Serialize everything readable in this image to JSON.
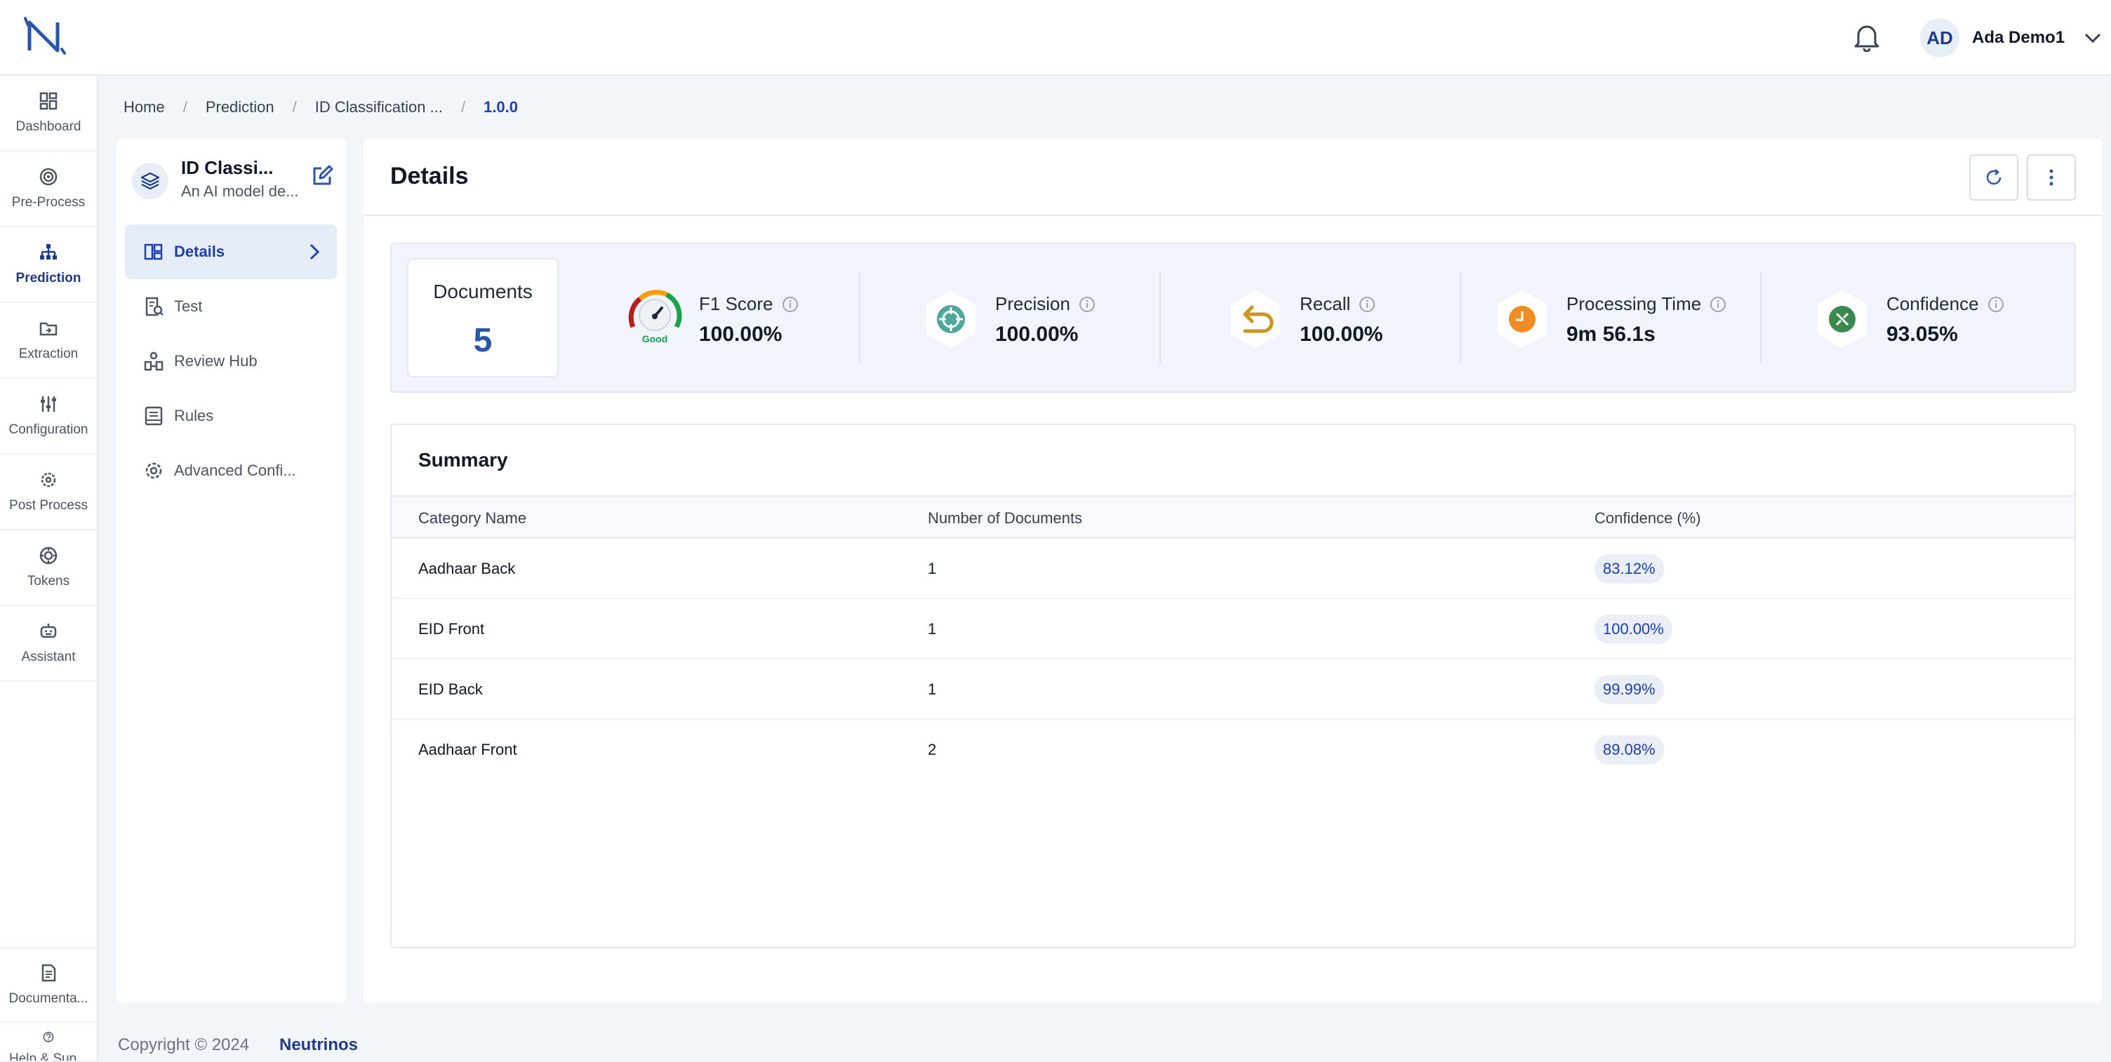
{
  "header": {
    "user_initials": "AD",
    "user_name": "Ada Demo1"
  },
  "rail": {
    "items": [
      {
        "label": "Dashboard"
      },
      {
        "label": "Pre-Process"
      },
      {
        "label": "Prediction"
      },
      {
        "label": "Extraction"
      },
      {
        "label": "Configuration"
      },
      {
        "label": "Post Process"
      },
      {
        "label": "Tokens"
      },
      {
        "label": "Assistant"
      }
    ],
    "bottom_items": [
      {
        "label": "Documenta..."
      },
      {
        "label": "Help & Sup..."
      }
    ]
  },
  "breadcrumb": {
    "items": [
      "Home",
      "Prediction",
      "ID Classification ..."
    ],
    "current": "1.0.0"
  },
  "model": {
    "title": "ID Classi...",
    "description": "An AI model de..."
  },
  "subnav": {
    "items": [
      {
        "label": "Details"
      },
      {
        "label": "Test"
      },
      {
        "label": "Review Hub"
      },
      {
        "label": "Rules"
      },
      {
        "label": "Advanced Confi..."
      }
    ]
  },
  "main": {
    "title": "Details"
  },
  "metrics": {
    "documents_label": "Documents",
    "documents_value": "5",
    "f1_label": "F1 Score",
    "f1_value": "100.00%",
    "f1_gauge_text": "Good",
    "precision_label": "Precision",
    "precision_value": "100.00%",
    "recall_label": "Recall",
    "recall_value": "100.00%",
    "time_label": "Processing Time",
    "time_value": "9m 56.1s",
    "confidence_label": "Confidence",
    "confidence_value": "93.05%"
  },
  "summary": {
    "title": "Summary",
    "columns": [
      "Category Name",
      "Number of Documents",
      "Confidence (%)"
    ],
    "rows": [
      {
        "category": "Aadhaar Back",
        "count": "1",
        "confidence": "83.12%"
      },
      {
        "category": "EID Front",
        "count": "1",
        "confidence": "100.00%"
      },
      {
        "category": "EID Back",
        "count": "1",
        "confidence": "99.99%"
      },
      {
        "category": "Aadhaar Front",
        "count": "2",
        "confidence": "89.08%"
      }
    ]
  },
  "footer": {
    "copyright": "Copyright © 2024",
    "brand": "Neutrinos"
  }
}
